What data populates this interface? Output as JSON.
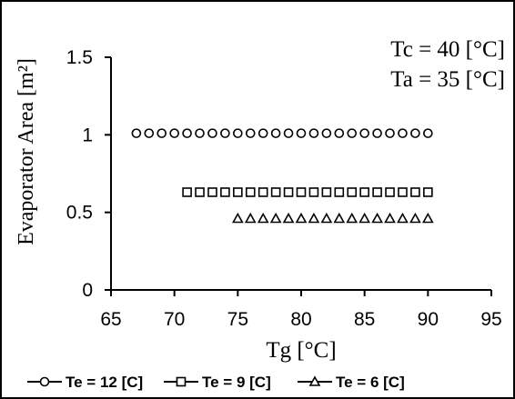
{
  "chart_data": {
    "type": "scatter",
    "xlabel": "Tg [°C]",
    "ylabel": "Evaporator Area [m²]",
    "xlim": [
      65,
      95
    ],
    "ylim": [
      0,
      1.5
    ],
    "x_ticks": [
      "65",
      "70",
      "75",
      "80",
      "85",
      "90",
      "95"
    ],
    "y_ticks": [
      "0",
      "0.5",
      "1",
      "1.5"
    ],
    "grid": false,
    "legend_position": "bottom",
    "annotations": [
      "Tc = 40 [°C]",
      "Ta = 35 [°C]"
    ],
    "series": [
      {
        "name": "Te = 12 [C]",
        "marker": "circle",
        "x": [
          67,
          68,
          69,
          70,
          71,
          72,
          73,
          74,
          75,
          76,
          77,
          78,
          79,
          80,
          81,
          82,
          83,
          84,
          85,
          86,
          87,
          88,
          89,
          90
        ],
        "y": [
          1.01,
          1.01,
          1.01,
          1.01,
          1.01,
          1.01,
          1.01,
          1.01,
          1.01,
          1.01,
          1.01,
          1.01,
          1.01,
          1.01,
          1.01,
          1.01,
          1.01,
          1.01,
          1.01,
          1.01,
          1.01,
          1.01,
          1.01,
          1.01
        ]
      },
      {
        "name": "Te = 9 [C]",
        "marker": "square",
        "x": [
          71,
          72,
          73,
          74,
          75,
          76,
          77,
          78,
          79,
          80,
          81,
          82,
          83,
          84,
          85,
          86,
          87,
          88,
          89,
          90
        ],
        "y": [
          0.63,
          0.63,
          0.63,
          0.63,
          0.63,
          0.63,
          0.63,
          0.63,
          0.63,
          0.63,
          0.63,
          0.63,
          0.63,
          0.63,
          0.63,
          0.63,
          0.63,
          0.63,
          0.63,
          0.63
        ]
      },
      {
        "name": "Te = 6 [C]",
        "marker": "triangle",
        "x": [
          75,
          76,
          77,
          78,
          79,
          80,
          81,
          82,
          83,
          84,
          85,
          86,
          87,
          88,
          89,
          90
        ],
        "y": [
          0.46,
          0.46,
          0.46,
          0.46,
          0.46,
          0.46,
          0.46,
          0.46,
          0.46,
          0.46,
          0.46,
          0.46,
          0.46,
          0.46,
          0.46,
          0.46
        ]
      }
    ]
  }
}
